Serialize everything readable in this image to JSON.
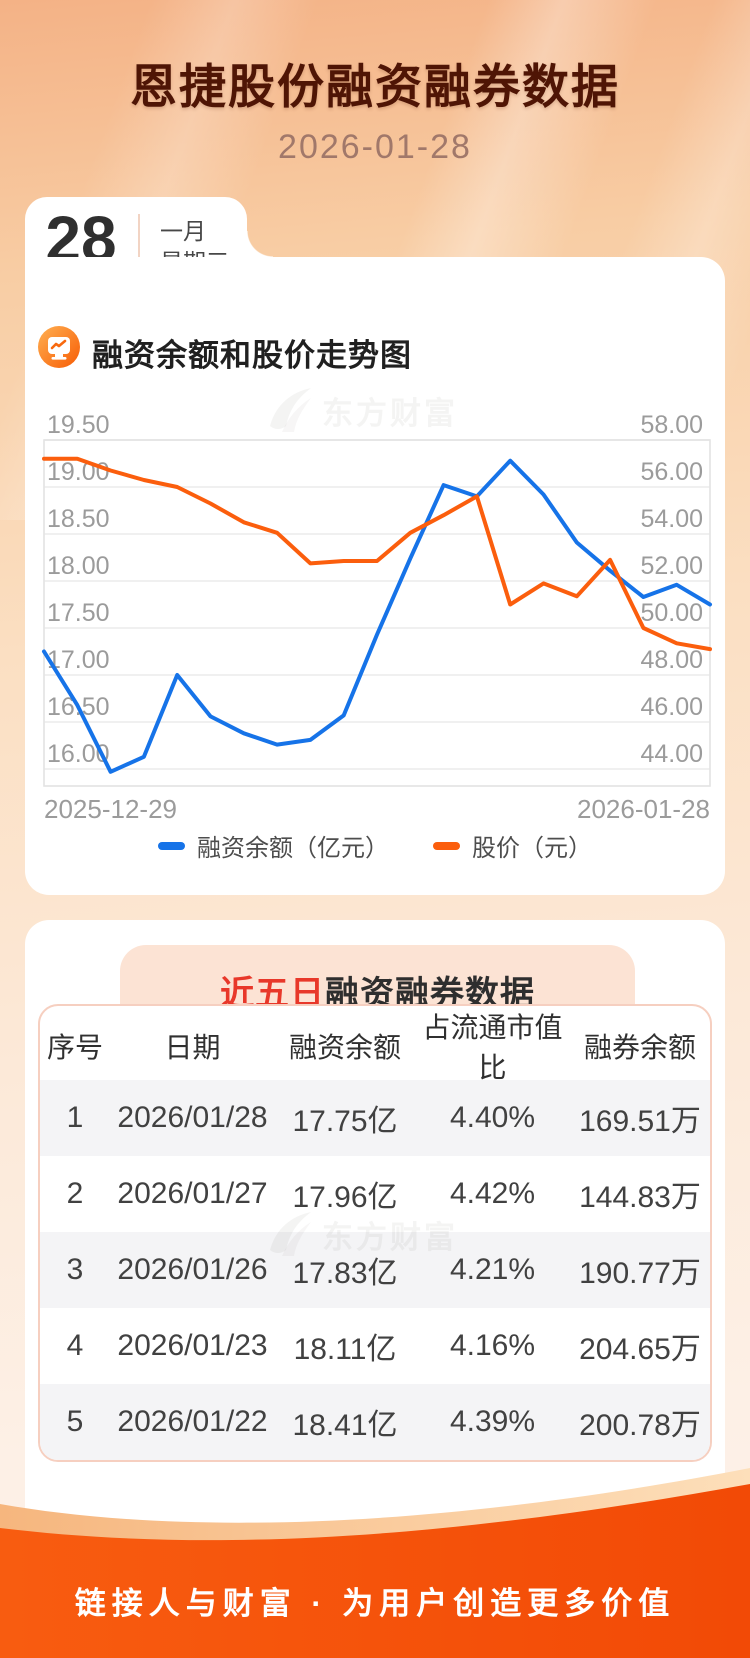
{
  "page": {
    "title": "恩捷股份融资融券数据",
    "date": "2026-01-28",
    "calendar": {
      "day": "28",
      "month": "一月",
      "weekday": "星期三"
    },
    "watermark": "东方财富",
    "footer_slogan": "链接人与财富 · 为用户创造更多价值",
    "colors": {
      "accent_orange": "#f4570b",
      "title_maroon": "#4f1505",
      "banner_pink": "#fce3d4",
      "alt_row": "#f4f4f6",
      "highlight_red": "#e8382a"
    }
  },
  "chart_section": {
    "title": "融资余额和股价走势图",
    "chart_data": {
      "type": "line",
      "x": [
        "2025-12-29",
        "2025-12-30",
        "2025-12-31",
        "2026-01-05",
        "2026-01-06",
        "2026-01-07",
        "2026-01-08",
        "2026-01-09",
        "2026-01-12",
        "2026-01-13",
        "2026-01-14",
        "2026-01-15",
        "2026-01-16",
        "2026-01-19",
        "2026-01-20",
        "2026-01-21",
        "2026-01-22",
        "2026-01-23",
        "2026-01-26",
        "2026-01-27",
        "2026-01-28"
      ],
      "x_tick_labels": [
        "2025-12-29",
        "2026-01-28"
      ],
      "series": [
        {
          "name": "融资余额（亿元）",
          "axis": "left",
          "color": "#1673e8",
          "values": [
            17.25,
            16.68,
            15.97,
            16.13,
            17.0,
            16.56,
            16.38,
            16.26,
            16.31,
            16.57,
            17.43,
            18.24,
            19.02,
            18.9,
            19.28,
            18.92,
            18.41,
            18.11,
            17.83,
            17.96,
            17.75
          ]
        },
        {
          "name": "股价（元）",
          "axis": "right",
          "color": "#fb5e0d",
          "values": [
            57.2,
            57.2,
            56.7,
            56.3,
            56.0,
            55.3,
            54.5,
            54.05,
            52.75,
            52.85,
            52.85,
            54.05,
            54.8,
            55.6,
            51.0,
            51.9,
            51.35,
            52.9,
            50.0,
            49.35,
            49.1
          ]
        }
      ],
      "left_axis": {
        "ticks": [
          "19.50",
          "19.00",
          "18.50",
          "18.00",
          "17.50",
          "17.00",
          "16.50",
          "16.00"
        ],
        "max": 19.5,
        "step": 0.5
      },
      "right_axis": {
        "ticks": [
          "58.00",
          "56.00",
          "54.00",
          "52.00",
          "50.00",
          "48.00",
          "46.00",
          "44.00"
        ],
        "max": 58.0,
        "step": 2.0
      },
      "legend_position": "bottom",
      "grid": true
    }
  },
  "table_section": {
    "title_highlight": "近五日",
    "title_rest": "融资融券数据",
    "columns": [
      "序号",
      "日期",
      "融资余额",
      "占流通市值比",
      "融券余额"
    ],
    "rows": [
      [
        "1",
        "2026/01/28",
        "17.75亿",
        "4.40%",
        "169.51万"
      ],
      [
        "2",
        "2026/01/27",
        "17.96亿",
        "4.42%",
        "144.83万"
      ],
      [
        "3",
        "2026/01/26",
        "17.83亿",
        "4.21%",
        "190.77万"
      ],
      [
        "4",
        "2026/01/23",
        "18.11亿",
        "4.16%",
        "204.65万"
      ],
      [
        "5",
        "2026/01/22",
        "18.41亿",
        "4.39%",
        "200.78万"
      ]
    ]
  }
}
